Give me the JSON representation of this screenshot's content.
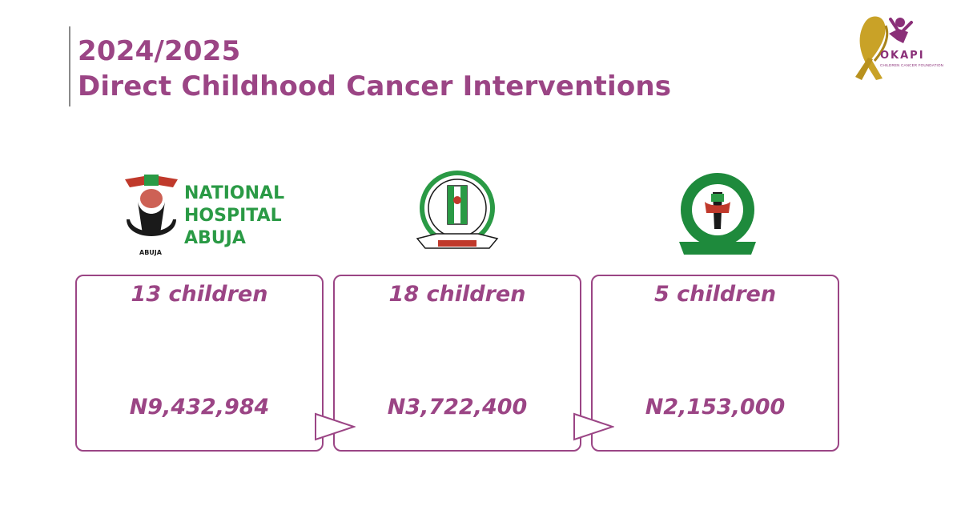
{
  "header": {
    "title_line1": "2024/2025",
    "title_line2": "Direct Childhood Cancer Interventions"
  },
  "brand": {
    "logo_name": "OKAPI",
    "tagline": "CHILDREN CANCER FOUNDATION",
    "icon": "gold-ribbon-icon"
  },
  "hospitals": [
    {
      "logo_lines": [
        "NATIONAL",
        "HOSPITAL",
        "ABUJA"
      ],
      "children": "13 children",
      "amount": "N9,432,984"
    },
    {
      "children": "18 children",
      "amount": "N3,722,400"
    },
    {
      "children": "5 children",
      "amount": "N2,153,000"
    }
  ],
  "colors": {
    "accent": "#9b4585",
    "nha_green": "#2a9a45",
    "fmc_green": "#1e8a3c",
    "gold": "#c9a227"
  }
}
